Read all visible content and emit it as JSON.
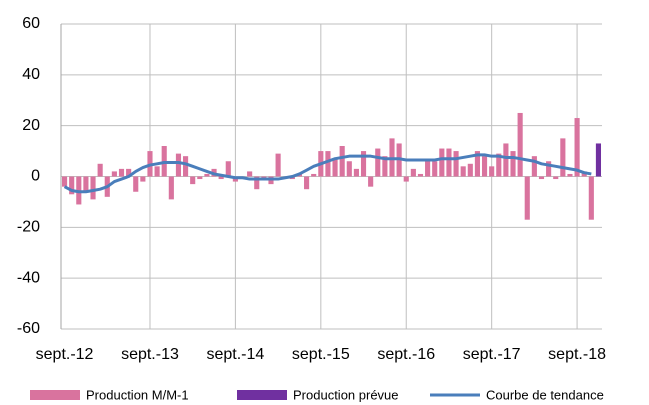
{
  "chart_data": {
    "type": "bar",
    "categories": [
      "sept.-12",
      null,
      null,
      null,
      null,
      null,
      null,
      null,
      null,
      null,
      null,
      null,
      "sept.-13",
      null,
      null,
      null,
      null,
      null,
      null,
      null,
      null,
      null,
      null,
      null,
      "sept.-14",
      null,
      null,
      null,
      null,
      null,
      null,
      null,
      null,
      null,
      null,
      null,
      "sept.-15",
      null,
      null,
      null,
      null,
      null,
      null,
      null,
      null,
      null,
      null,
      null,
      "sept.-16",
      null,
      null,
      null,
      null,
      null,
      null,
      null,
      null,
      null,
      null,
      null,
      "sept.-17",
      null,
      null,
      null,
      null,
      null,
      null,
      null,
      null,
      null,
      null,
      null,
      "sept.-18",
      null,
      null,
      null
    ],
    "series": [
      {
        "name": "Production M/M-1",
        "type": "bar",
        "color": "#d9739e",
        "values": [
          -4,
          -7,
          -11,
          -6,
          -9,
          5,
          -8,
          2,
          3,
          3,
          -6,
          -2,
          10,
          4,
          12,
          -9,
          9,
          8,
          -3,
          -1,
          1,
          3,
          -1,
          6,
          -2,
          -1,
          2,
          -5,
          -1,
          -3,
          9,
          0,
          -1,
          1,
          -5,
          1,
          10,
          10,
          7,
          12,
          6,
          3,
          10,
          -4,
          11,
          8,
          15,
          13,
          -2,
          3,
          1,
          6,
          6,
          11,
          11,
          10,
          4,
          5,
          10,
          8,
          4,
          9,
          13,
          10,
          25,
          -17,
          8,
          -1,
          6,
          -1,
          15,
          1,
          23,
          2,
          -17,
          null
        ]
      },
      {
        "name": "Production prévue",
        "type": "bar",
        "color": "#7030a0",
        "values": [
          null,
          null,
          null,
          null,
          null,
          null,
          null,
          null,
          null,
          null,
          null,
          null,
          null,
          null,
          null,
          null,
          null,
          null,
          null,
          null,
          null,
          null,
          null,
          null,
          null,
          null,
          null,
          null,
          null,
          null,
          null,
          null,
          null,
          null,
          null,
          null,
          null,
          null,
          null,
          null,
          null,
          null,
          null,
          null,
          null,
          null,
          null,
          null,
          null,
          null,
          null,
          null,
          null,
          null,
          null,
          null,
          null,
          null,
          null,
          null,
          null,
          null,
          null,
          null,
          null,
          null,
          null,
          null,
          null,
          null,
          null,
          null,
          null,
          null,
          null,
          13
        ]
      },
      {
        "name": "Courbe de tendance",
        "type": "line",
        "color": "#4a7ebb",
        "values": [
          -4,
          -5.5,
          -6,
          -6,
          -5.5,
          -5,
          -4,
          -2,
          -1,
          0,
          2,
          3.5,
          4.5,
          5,
          5.5,
          5.5,
          5.5,
          5,
          4,
          3,
          2,
          1,
          0.5,
          0,
          -0.5,
          -0.5,
          -1,
          -1,
          -1,
          -1,
          -1,
          -0.5,
          0,
          1,
          2.5,
          4,
          5,
          6,
          7,
          7.5,
          8,
          8,
          8,
          8,
          7.5,
          7,
          7,
          7,
          6.5,
          6.5,
          6.5,
          6.5,
          6.5,
          7,
          7,
          7,
          7.5,
          8,
          8.5,
          8.5,
          8,
          8,
          7.5,
          7.5,
          7,
          6.5,
          6,
          5,
          4.5,
          4,
          3.5,
          3,
          2.5,
          1.5,
          1,
          null
        ]
      }
    ],
    "ylim": [
      -60,
      60
    ],
    "yticks": [
      -60,
      -40,
      -20,
      0,
      20,
      40,
      60
    ],
    "grid": true,
    "legend": "bottom"
  }
}
